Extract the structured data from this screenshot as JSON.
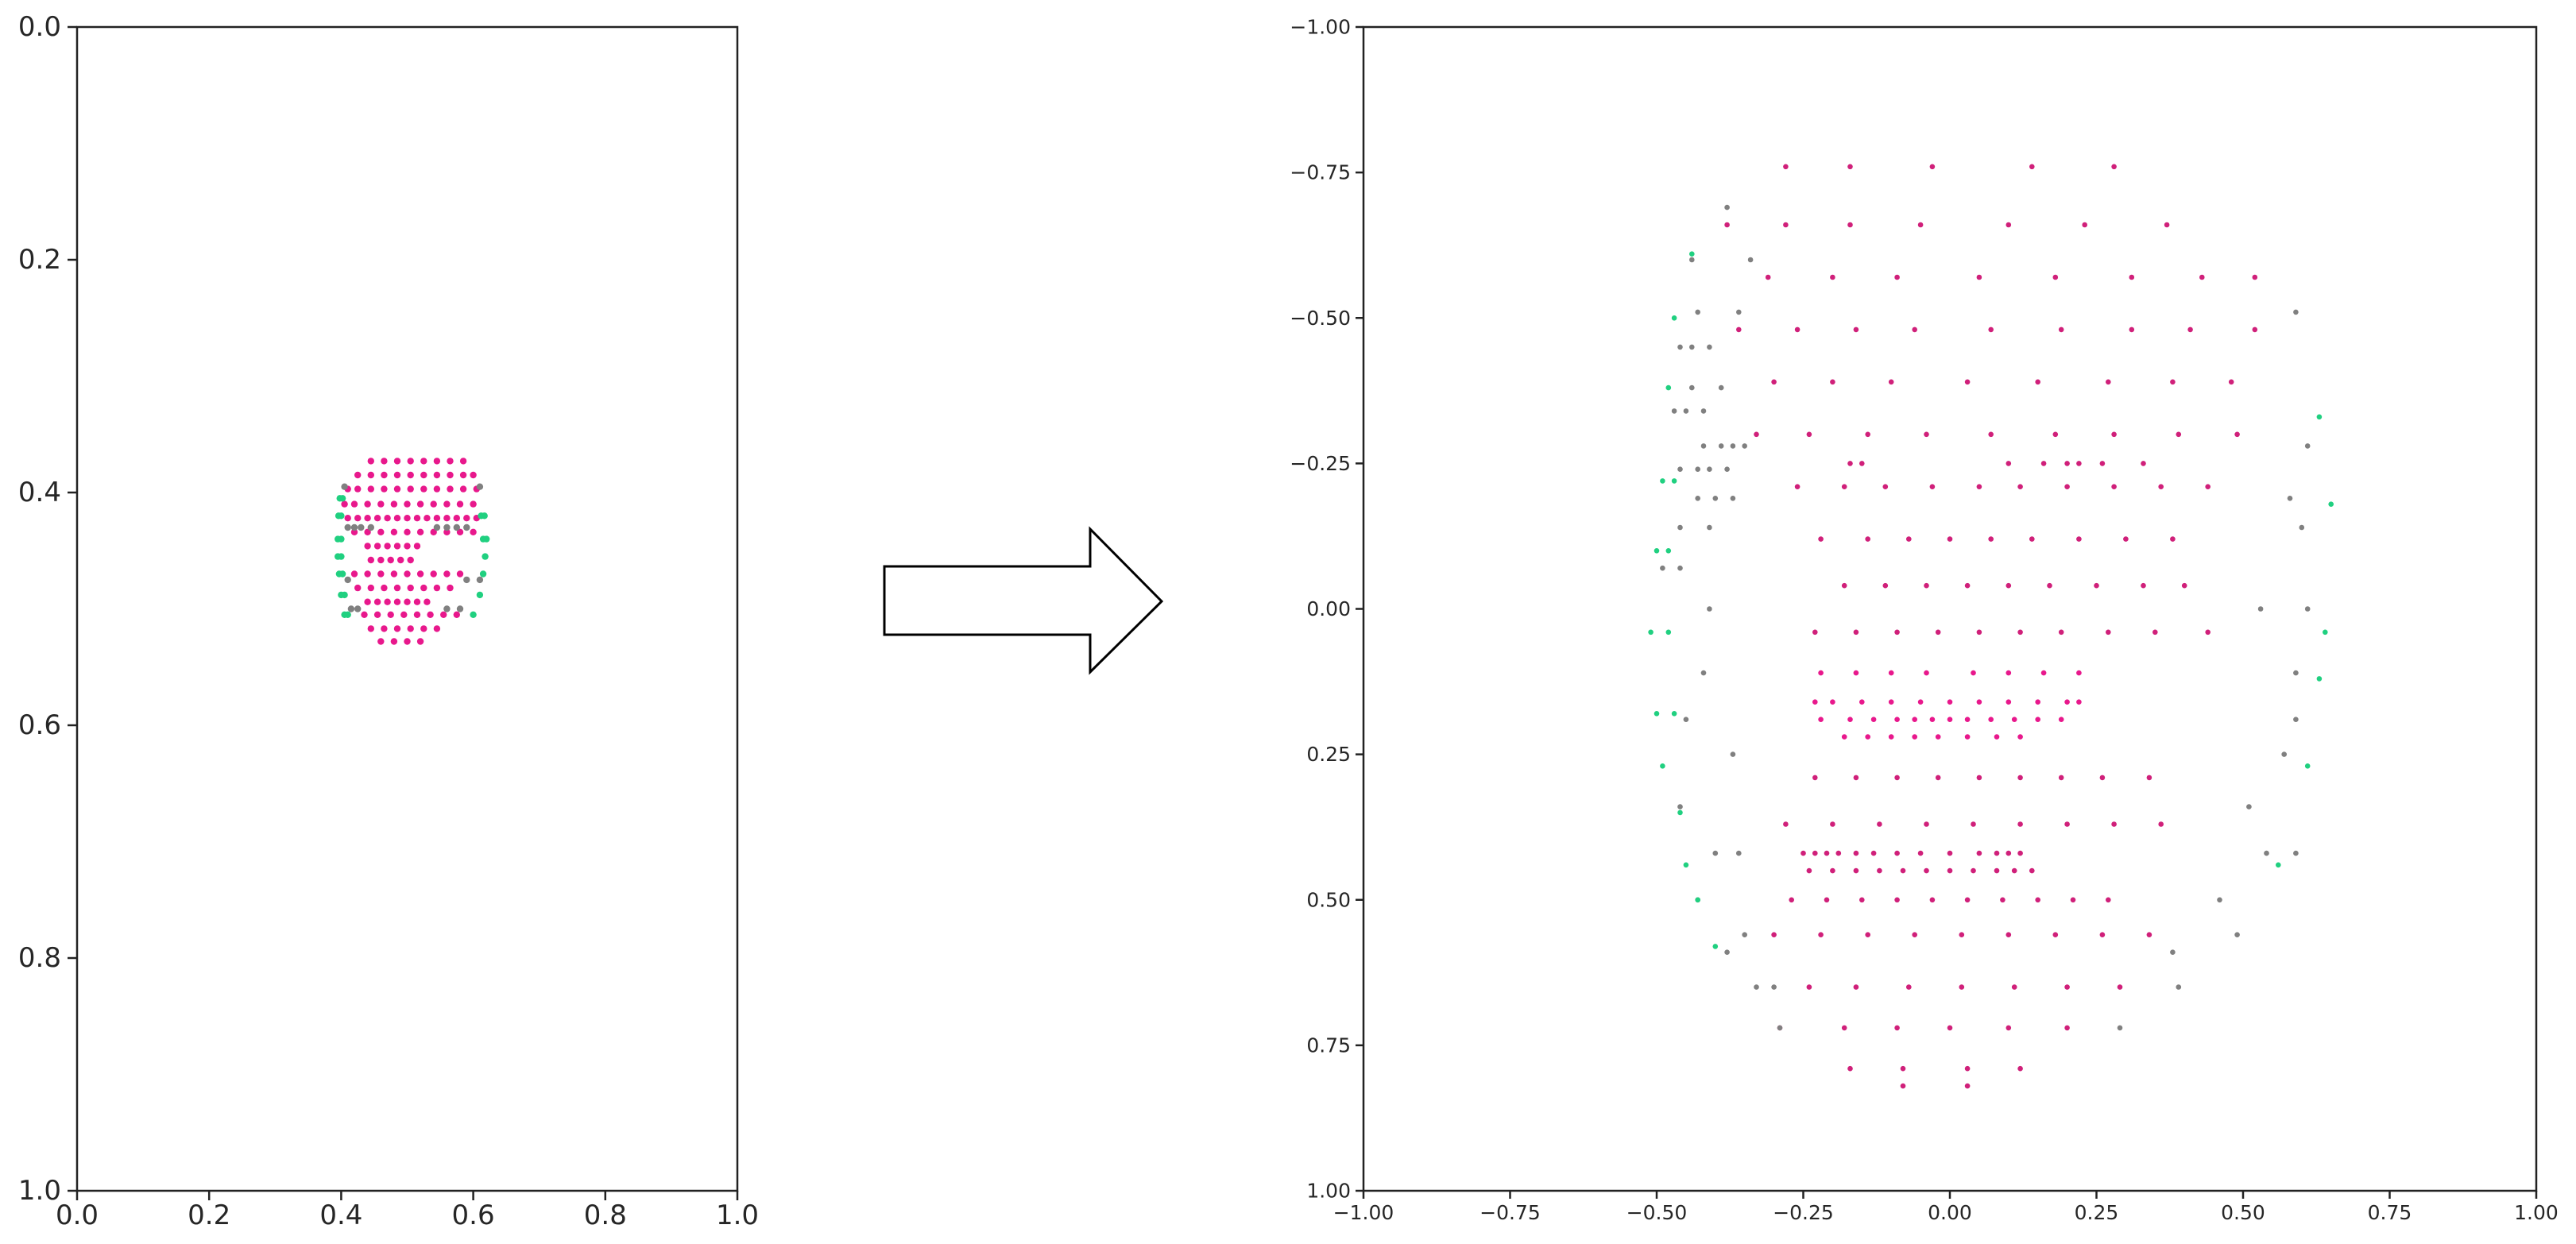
{
  "figure": {
    "arrow": {
      "fill": "#ffffff",
      "stroke": "#000000"
    }
  },
  "chart_data": [
    {
      "type": "scatter",
      "title": "",
      "xlabel": "",
      "ylabel": "",
      "xlim": [
        0.0,
        1.0
      ],
      "ylim": [
        1.0,
        0.0
      ],
      "y_inverted": true,
      "grid": false,
      "legend": "none",
      "x_ticks": [
        "0.0",
        "0.2",
        "0.4",
        "0.6",
        "0.8",
        "1.0"
      ],
      "y_ticks": [
        "0.0",
        "0.2",
        "0.4",
        "0.6",
        "0.8",
        "1.0"
      ],
      "colors": {
        "front": "#e8188c",
        "side": "#808080",
        "edge": "#20d080"
      },
      "rows": [
        {
          "y": 0.373,
          "xs": [
            0.445,
            0.465,
            0.485,
            0.505,
            0.525,
            0.545,
            0.565,
            0.585
          ],
          "c": "front"
        },
        {
          "y": 0.385,
          "xs": [
            0.425,
            0.445,
            0.465,
            0.485,
            0.505,
            0.525,
            0.545,
            0.565,
            0.585,
            0.6
          ],
          "c": "front"
        },
        {
          "y": 0.397,
          "xs": [
            0.41,
            0.425,
            0.445,
            0.465,
            0.485,
            0.505,
            0.525,
            0.545,
            0.565,
            0.585,
            0.605
          ],
          "c": "front"
        },
        {
          "y": 0.41,
          "xs": [
            0.405,
            0.42,
            0.44,
            0.46,
            0.48,
            0.5,
            0.52,
            0.54,
            0.56,
            0.58,
            0.6
          ],
          "c": "front"
        },
        {
          "y": 0.422,
          "xs": [
            0.41,
            0.425,
            0.44,
            0.455,
            0.47,
            0.485,
            0.5,
            0.515,
            0.53,
            0.545,
            0.56,
            0.575,
            0.59,
            0.605
          ],
          "c": "front"
        },
        {
          "y": 0.434,
          "xs": [
            0.42,
            0.44,
            0.46,
            0.48,
            0.5,
            0.52,
            0.54,
            0.56,
            0.58,
            0.6
          ],
          "c": "front"
        },
        {
          "y": 0.446,
          "xs": [
            0.44,
            0.455,
            0.47,
            0.485,
            0.5,
            0.515
          ],
          "c": "front"
        },
        {
          "y": 0.458,
          "xs": [
            0.445,
            0.46,
            0.475,
            0.49,
            0.505
          ],
          "c": "front"
        },
        {
          "y": 0.47,
          "xs": [
            0.42,
            0.44,
            0.46,
            0.48,
            0.5,
            0.52,
            0.54,
            0.56,
            0.58
          ],
          "c": "front"
        },
        {
          "y": 0.482,
          "xs": [
            0.425,
            0.445,
            0.465,
            0.485,
            0.505,
            0.525,
            0.545,
            0.565
          ],
          "c": "front"
        },
        {
          "y": 0.494,
          "xs": [
            0.44,
            0.455,
            0.47,
            0.485,
            0.5,
            0.515,
            0.53
          ],
          "c": "front"
        },
        {
          "y": 0.505,
          "xs": [
            0.435,
            0.455,
            0.475,
            0.495,
            0.515,
            0.535,
            0.555,
            0.575
          ],
          "c": "front"
        },
        {
          "y": 0.517,
          "xs": [
            0.445,
            0.465,
            0.485,
            0.505,
            0.525,
            0.545
          ],
          "c": "front"
        },
        {
          "y": 0.528,
          "xs": [
            0.46,
            0.48,
            0.5,
            0.52
          ],
          "c": "front"
        },
        {
          "y": 0.43,
          "xs": [
            0.41,
            0.42,
            0.43,
            0.445,
            0.545,
            0.56,
            0.575,
            0.59
          ],
          "c": "side"
        },
        {
          "y": 0.475,
          "xs": [
            0.41,
            0.59,
            0.61
          ],
          "c": "side"
        },
        {
          "y": 0.5,
          "xs": [
            0.415,
            0.425,
            0.56,
            0.58
          ],
          "c": "side"
        },
        {
          "y": 0.395,
          "xs": [
            0.405,
            0.61
          ],
          "c": "side"
        },
        {
          "y": 0.405,
          "xs": [
            0.398,
            0.402
          ],
          "c": "edge"
        },
        {
          "y": 0.42,
          "xs": [
            0.396,
            0.4,
            0.612,
            0.617
          ],
          "c": "edge"
        },
        {
          "y": 0.44,
          "xs": [
            0.395,
            0.4,
            0.615,
            0.62
          ],
          "c": "edge"
        },
        {
          "y": 0.455,
          "xs": [
            0.395,
            0.4,
            0.618
          ],
          "c": "edge"
        },
        {
          "y": 0.47,
          "xs": [
            0.397,
            0.402,
            0.615
          ],
          "c": "edge"
        },
        {
          "y": 0.488,
          "xs": [
            0.4,
            0.405,
            0.61
          ],
          "c": "edge"
        },
        {
          "y": 0.505,
          "xs": [
            0.405,
            0.41,
            0.6
          ],
          "c": "edge"
        }
      ]
    },
    {
      "type": "scatter",
      "title": "",
      "xlabel": "",
      "ylabel": "",
      "xlim": [
        -1.0,
        1.0
      ],
      "ylim": [
        1.0,
        -1.0
      ],
      "y_inverted": true,
      "grid": false,
      "legend": "none",
      "x_ticks": [
        "−1.00",
        "−0.75",
        "−0.50",
        "−0.25",
        "0.00",
        "0.25",
        "0.50",
        "0.75",
        "1.00"
      ],
      "y_ticks": [
        "−1.00",
        "−0.75",
        "−0.50",
        "−0.25",
        "0.00",
        "0.25",
        "0.50",
        "0.75",
        "1.00"
      ],
      "colors": {
        "front": "#d0207a",
        "mouth": "#e8188c",
        "side": "#808080",
        "edge": "#20d080"
      },
      "rows": [
        {
          "y": -0.76,
          "xs": [
            -0.28,
            -0.17,
            -0.03,
            0.14,
            0.28
          ],
          "c": "front"
        },
        {
          "y": -0.66,
          "xs": [
            -0.38,
            -0.28,
            -0.17,
            -0.05,
            0.1,
            0.23,
            0.37
          ],
          "c": "front"
        },
        {
          "y": -0.57,
          "xs": [
            -0.31,
            -0.2,
            -0.09,
            0.05,
            0.18,
            0.31,
            0.43,
            0.52
          ],
          "c": "front"
        },
        {
          "y": -0.48,
          "xs": [
            -0.36,
            -0.26,
            -0.16,
            -0.06,
            0.07,
            0.19,
            0.31,
            0.41,
            0.52
          ],
          "c": "front"
        },
        {
          "y": -0.39,
          "xs": [
            -0.3,
            -0.2,
            -0.1,
            0.03,
            0.15,
            0.27,
            0.38,
            0.48
          ],
          "c": "front"
        },
        {
          "y": -0.3,
          "xs": [
            -0.33,
            -0.24,
            -0.14,
            -0.04,
            0.07,
            0.18,
            0.28,
            0.39,
            0.49
          ],
          "c": "front"
        },
        {
          "y": -0.25,
          "xs": [
            -0.17,
            -0.15,
            0.1,
            0.16,
            0.2,
            0.22,
            0.26,
            0.33
          ],
          "c": "front"
        },
        {
          "y": -0.21,
          "xs": [
            -0.26,
            -0.18,
            -0.11,
            -0.03,
            0.05,
            0.12,
            0.2,
            0.28,
            0.36,
            0.44
          ],
          "c": "front"
        },
        {
          "y": -0.12,
          "xs": [
            -0.22,
            -0.14,
            -0.07,
            0.0,
            0.07,
            0.14,
            0.22,
            0.3,
            0.38
          ],
          "c": "front"
        },
        {
          "y": -0.04,
          "xs": [
            -0.18,
            -0.11,
            -0.04,
            0.03,
            0.1,
            0.17,
            0.25,
            0.33,
            0.4
          ],
          "c": "front"
        },
        {
          "y": 0.04,
          "xs": [
            -0.23,
            -0.16,
            -0.09,
            -0.02,
            0.05,
            0.12,
            0.19,
            0.27,
            0.35,
            0.44
          ],
          "c": "front"
        },
        {
          "y": 0.11,
          "xs": [
            -0.22,
            -0.16,
            -0.1,
            -0.04,
            0.04,
            0.1,
            0.16,
            0.22
          ],
          "c": "mouth"
        },
        {
          "y": 0.16,
          "xs": [
            -0.23,
            -0.2,
            -0.15,
            -0.1,
            -0.05,
            0.0,
            0.05,
            0.1,
            0.15,
            0.2,
            0.22
          ],
          "c": "mouth"
        },
        {
          "y": 0.19,
          "xs": [
            -0.22,
            -0.17,
            -0.13,
            -0.09,
            -0.06,
            -0.03,
            0.0,
            0.03,
            0.07,
            0.11,
            0.15,
            0.19
          ],
          "c": "mouth"
        },
        {
          "y": 0.22,
          "xs": [
            -0.18,
            -0.14,
            -0.1,
            -0.06,
            -0.02,
            0.03,
            0.08,
            0.12
          ],
          "c": "mouth"
        },
        {
          "y": 0.29,
          "xs": [
            -0.23,
            -0.16,
            -0.09,
            -0.02,
            0.05,
            0.12,
            0.19,
            0.26,
            0.34
          ],
          "c": "front"
        },
        {
          "y": 0.37,
          "xs": [
            -0.28,
            -0.2,
            -0.12,
            -0.04,
            0.04,
            0.12,
            0.2,
            0.28,
            0.36
          ],
          "c": "front"
        },
        {
          "y": 0.42,
          "xs": [
            -0.25,
            -0.23,
            -0.21,
            -0.19,
            -0.16,
            -0.13,
            -0.09,
            -0.05,
            0.0,
            0.05,
            0.08,
            0.1,
            0.12
          ],
          "c": "front"
        },
        {
          "y": 0.45,
          "xs": [
            -0.24,
            -0.2,
            -0.16,
            -0.12,
            -0.08,
            -0.04,
            0.0,
            0.04,
            0.08,
            0.11,
            0.14
          ],
          "c": "front"
        },
        {
          "y": 0.5,
          "xs": [
            -0.27,
            -0.21,
            -0.15,
            -0.09,
            -0.03,
            0.03,
            0.09,
            0.15,
            0.21,
            0.27
          ],
          "c": "front"
        },
        {
          "y": 0.56,
          "xs": [
            -0.3,
            -0.22,
            -0.14,
            -0.06,
            0.02,
            0.1,
            0.18,
            0.26,
            0.34
          ],
          "c": "front"
        },
        {
          "y": 0.65,
          "xs": [
            -0.24,
            -0.16,
            -0.07,
            0.02,
            0.11,
            0.2,
            0.29
          ],
          "c": "front"
        },
        {
          "y": 0.72,
          "xs": [
            -0.29,
            -0.18,
            -0.09,
            0.0,
            0.1,
            0.2
          ],
          "c": "front"
        },
        {
          "y": 0.79,
          "xs": [
            -0.17,
            -0.08,
            0.03,
            0.12
          ],
          "c": "front"
        },
        {
          "y": 0.82,
          "xs": [
            -0.08,
            0.03
          ],
          "c": "front"
        },
        {
          "y": -0.69,
          "xs": [
            -0.38
          ],
          "c": "side"
        },
        {
          "y": -0.6,
          "xs": [
            -0.44,
            -0.34
          ],
          "c": "side"
        },
        {
          "y": -0.51,
          "xs": [
            -0.43,
            -0.36,
            0.59
          ],
          "c": "side"
        },
        {
          "y": -0.45,
          "xs": [
            -0.46,
            -0.44,
            -0.41
          ],
          "c": "side"
        },
        {
          "y": -0.38,
          "xs": [
            -0.44,
            -0.39
          ],
          "c": "side"
        },
        {
          "y": -0.34,
          "xs": [
            -0.47,
            -0.45,
            -0.42
          ],
          "c": "side"
        },
        {
          "y": -0.28,
          "xs": [
            -0.42,
            -0.39,
            -0.37,
            -0.35,
            0.61
          ],
          "c": "side"
        },
        {
          "y": -0.24,
          "xs": [
            -0.46,
            -0.43,
            -0.41,
            -0.38
          ],
          "c": "side"
        },
        {
          "y": -0.19,
          "xs": [
            -0.43,
            -0.4,
            -0.37,
            0.58
          ],
          "c": "side"
        },
        {
          "y": -0.14,
          "xs": [
            -0.46,
            -0.41,
            0.6
          ],
          "c": "side"
        },
        {
          "y": -0.07,
          "xs": [
            -0.49,
            -0.46
          ],
          "c": "side"
        },
        {
          "y": 0.0,
          "xs": [
            -0.41,
            0.53,
            0.61
          ],
          "c": "side"
        },
        {
          "y": 0.11,
          "xs": [
            -0.42,
            0.59
          ],
          "c": "side"
        },
        {
          "y": 0.19,
          "xs": [
            -0.45,
            0.59
          ],
          "c": "side"
        },
        {
          "y": 0.25,
          "xs": [
            -0.37,
            0.57
          ],
          "c": "side"
        },
        {
          "y": 0.34,
          "xs": [
            -0.46,
            0.51
          ],
          "c": "side"
        },
        {
          "y": 0.42,
          "xs": [
            -0.4,
            -0.36,
            0.54,
            0.59
          ],
          "c": "side"
        },
        {
          "y": 0.5,
          "xs": [
            -0.43,
            0.46
          ],
          "c": "side"
        },
        {
          "y": 0.56,
          "xs": [
            -0.35,
            0.49
          ],
          "c": "side"
        },
        {
          "y": 0.59,
          "xs": [
            -0.38,
            0.38
          ],
          "c": "side"
        },
        {
          "y": 0.65,
          "xs": [
            -0.33,
            -0.3,
            0.39
          ],
          "c": "side"
        },
        {
          "y": 0.72,
          "xs": [
            -0.29,
            0.29
          ],
          "c": "side"
        },
        {
          "y": -0.61,
          "xs": [
            -0.44
          ],
          "c": "edge"
        },
        {
          "y": -0.5,
          "xs": [
            -0.47
          ],
          "c": "edge"
        },
        {
          "y": -0.38,
          "xs": [
            -0.48
          ],
          "c": "edge"
        },
        {
          "y": -0.33,
          "xs": [
            0.63
          ],
          "c": "edge"
        },
        {
          "y": -0.22,
          "xs": [
            -0.49,
            -0.47
          ],
          "c": "edge"
        },
        {
          "y": -0.18,
          "xs": [
            0.65
          ],
          "c": "edge"
        },
        {
          "y": -0.1,
          "xs": [
            -0.5,
            -0.48
          ],
          "c": "edge"
        },
        {
          "y": 0.04,
          "xs": [
            -0.51,
            -0.48,
            0.64
          ],
          "c": "edge"
        },
        {
          "y": 0.12,
          "xs": [
            0.63
          ],
          "c": "edge"
        },
        {
          "y": 0.18,
          "xs": [
            -0.5,
            -0.47
          ],
          "c": "edge"
        },
        {
          "y": 0.27,
          "xs": [
            -0.49,
            0.61
          ],
          "c": "edge"
        },
        {
          "y": 0.35,
          "xs": [
            -0.46
          ],
          "c": "edge"
        },
        {
          "y": 0.44,
          "xs": [
            -0.45,
            0.56
          ],
          "c": "edge"
        },
        {
          "y": 0.5,
          "xs": [
            -0.43
          ],
          "c": "edge"
        },
        {
          "y": 0.58,
          "xs": [
            -0.4
          ],
          "c": "edge"
        }
      ]
    }
  ]
}
